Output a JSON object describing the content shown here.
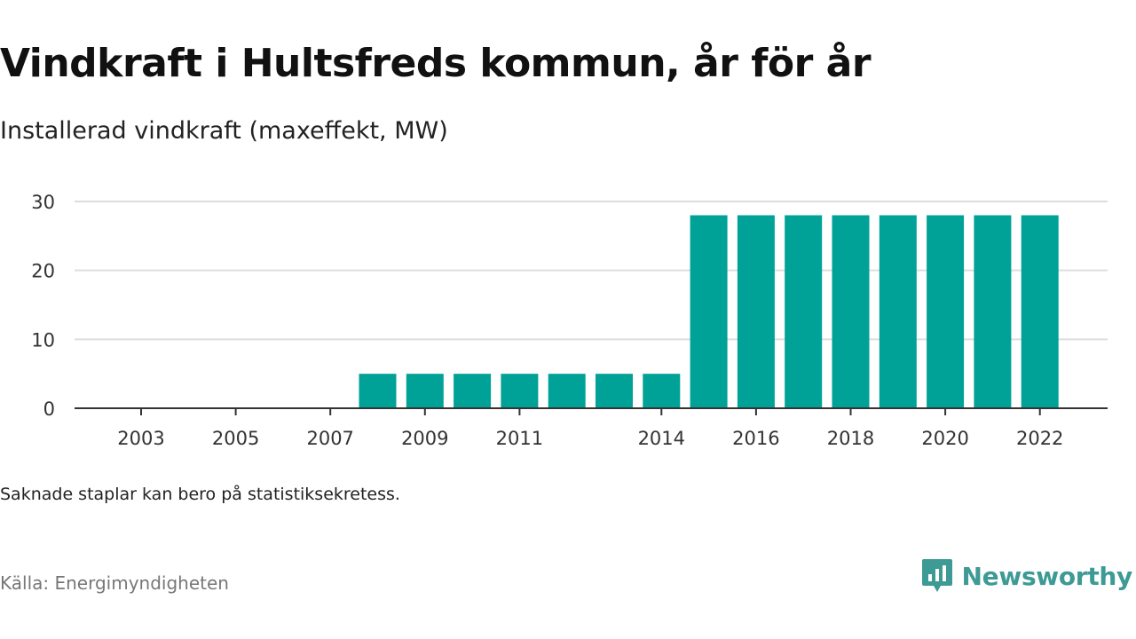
{
  "header": {
    "title": "Vindkraft i Hultsfreds kommun, år för år",
    "subtitle": "Installerad vindkraft (maxeffekt, MW)"
  },
  "footer": {
    "note": "Saknade staplar kan bero på statistiksekretess.",
    "source": "Källa: Energimyndigheten",
    "brand": "Newsworthy",
    "brand_icon": "newsworthy-logo-icon"
  },
  "colors": {
    "bar": "#00a298",
    "grid": "#dddddd",
    "axis": "#333333",
    "brand": "#3d9a94"
  },
  "chart_data": {
    "type": "bar",
    "title": "Vindkraft i Hultsfreds kommun, år för år",
    "subtitle": "Installerad vindkraft (maxeffekt, MW)",
    "categories": [
      "2003",
      "2004",
      "2005",
      "2006",
      "2007",
      "2008",
      "2009",
      "2010",
      "2011",
      "2012",
      "2013",
      "2014",
      "2015",
      "2016",
      "2017",
      "2018",
      "2019",
      "2020",
      "2021",
      "2022"
    ],
    "values": [
      0,
      0,
      0,
      0,
      0,
      5,
      5,
      5,
      5,
      5,
      5,
      5,
      28,
      28,
      28,
      28,
      28,
      28,
      28,
      28
    ],
    "x_tick_labels": [
      "2003",
      "2005",
      "2007",
      "2009",
      "2011",
      "2014",
      "2016",
      "2018",
      "2020",
      "2022"
    ],
    "y_ticks": [
      0,
      10,
      20,
      30
    ],
    "ylim": [
      0,
      30
    ],
    "xlabel": "",
    "ylabel": "",
    "grid": true,
    "legend": "none"
  }
}
